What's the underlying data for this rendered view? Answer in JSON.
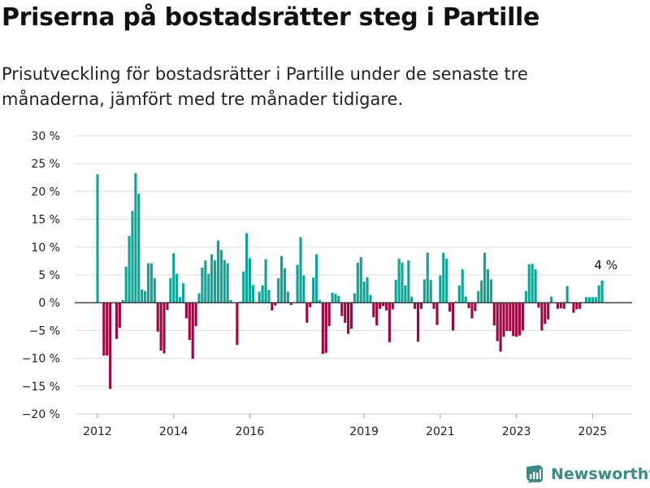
{
  "title": "Priserna på bostadsrätter steg i Partille",
  "subtitle": "Prisutveckling för bostadsrätter i Partille under de senaste tre månaderna, jämfört med tre månader tidigare.",
  "brand": {
    "name": "Newsworthy",
    "icon": "newsworthy-logo-icon",
    "color": "#3a8a86"
  },
  "chart_data": {
    "type": "bar",
    "title": "Priserna på bostadsrätter steg i Partille",
    "subtitle": "Prisutveckling för bostadsrätter i Partille under de senaste tre månaderna, jämfört med tre månader tidigare.",
    "ylim": [
      -20,
      30
    ],
    "yticks": [
      30,
      25,
      20,
      15,
      10,
      5,
      0,
      -5,
      -10,
      -15,
      -20
    ],
    "ytick_labels": [
      "30 %",
      "25 %",
      "20 %",
      "15 %",
      "10 %",
      "5 %",
      "0 %",
      "−5 %",
      "−10 %",
      "−15 %",
      "−20 %"
    ],
    "xticks": [
      {
        "label": "2012",
        "year": 2012
      },
      {
        "label": "2014",
        "year": 2014
      },
      {
        "label": "2016",
        "year": 2016
      },
      {
        "label": "2019",
        "year": 2019
      },
      {
        "label": "2021",
        "year": 2021
      },
      {
        "label": "2023",
        "year": 2023
      },
      {
        "label": "2025",
        "year": 2025
      }
    ],
    "x_start": "2012-01",
    "x_end": "2025-05",
    "grid": true,
    "legend": "none",
    "positive_color": "#0ea597",
    "negative_color": "#a0063f",
    "annotation": {
      "text": "4 %",
      "month": "2025-05",
      "value": 4
    },
    "values": [
      23.1,
      0,
      -9.5,
      -9.5,
      -15.5,
      0,
      -6.5,
      -4.5,
      0.5,
      6.5,
      12,
      16.5,
      23.3,
      19.6,
      2.4,
      2.1,
      7.1,
      7.1,
      4.4,
      -5.2,
      -8.6,
      -9.1,
      -1.3,
      4.4,
      8.9,
      5.2,
      1,
      3.5,
      -2.8,
      -6.7,
      -10.1,
      -4.2,
      1.7,
      6.3,
      7.6,
      5.2,
      8.7,
      7.6,
      11.2,
      9.5,
      7.7,
      7.1,
      0.5,
      0,
      -7.6,
      0.2,
      5.6,
      12.5,
      8,
      3.2,
      0,
      2,
      3.1,
      7.8,
      2.3,
      -1.4,
      -0.5,
      4.4,
      8.4,
      6.2,
      2,
      -0.4,
      0,
      6.8,
      11.8,
      4.9,
      -3.6,
      -0.8,
      4.5,
      8.7,
      0.5,
      -9.2,
      -9,
      -4.2,
      1.8,
      1.6,
      1.2,
      -2.4,
      -3.6,
      -5.6,
      -4.7,
      1.7,
      7.2,
      8.2,
      3.8,
      4.6,
      1.4,
      -2.6,
      -4.1,
      -1.1,
      -0.6,
      -1.4,
      -7.1,
      -1.2,
      4.1,
      7.9,
      7.2,
      3.1,
      7.6,
      1.1,
      -1.1,
      -7,
      -1.1,
      4.2,
      9,
      4.1,
      -1.1,
      -4,
      4.9,
      9,
      7.9,
      -1.6,
      -5,
      0.2,
      3.1,
      6,
      1.1,
      -1,
      -2.8,
      -1.5,
      2.1,
      4,
      9,
      6,
      4.2,
      -4.1,
      -6.9,
      -8.8,
      -6.1,
      -5.1,
      -5.1,
      -6,
      -6.1,
      -5.9,
      -5,
      2.1,
      6.9,
      7,
      6,
      -0.9,
      -5,
      -3.8,
      -3,
      1.1,
      0,
      -1.1,
      -1,
      -1.1,
      3,
      0,
      -1.8,
      -1.2,
      -1.1,
      0,
      1,
      1,
      1,
      1,
      3.1,
      4
    ]
  }
}
